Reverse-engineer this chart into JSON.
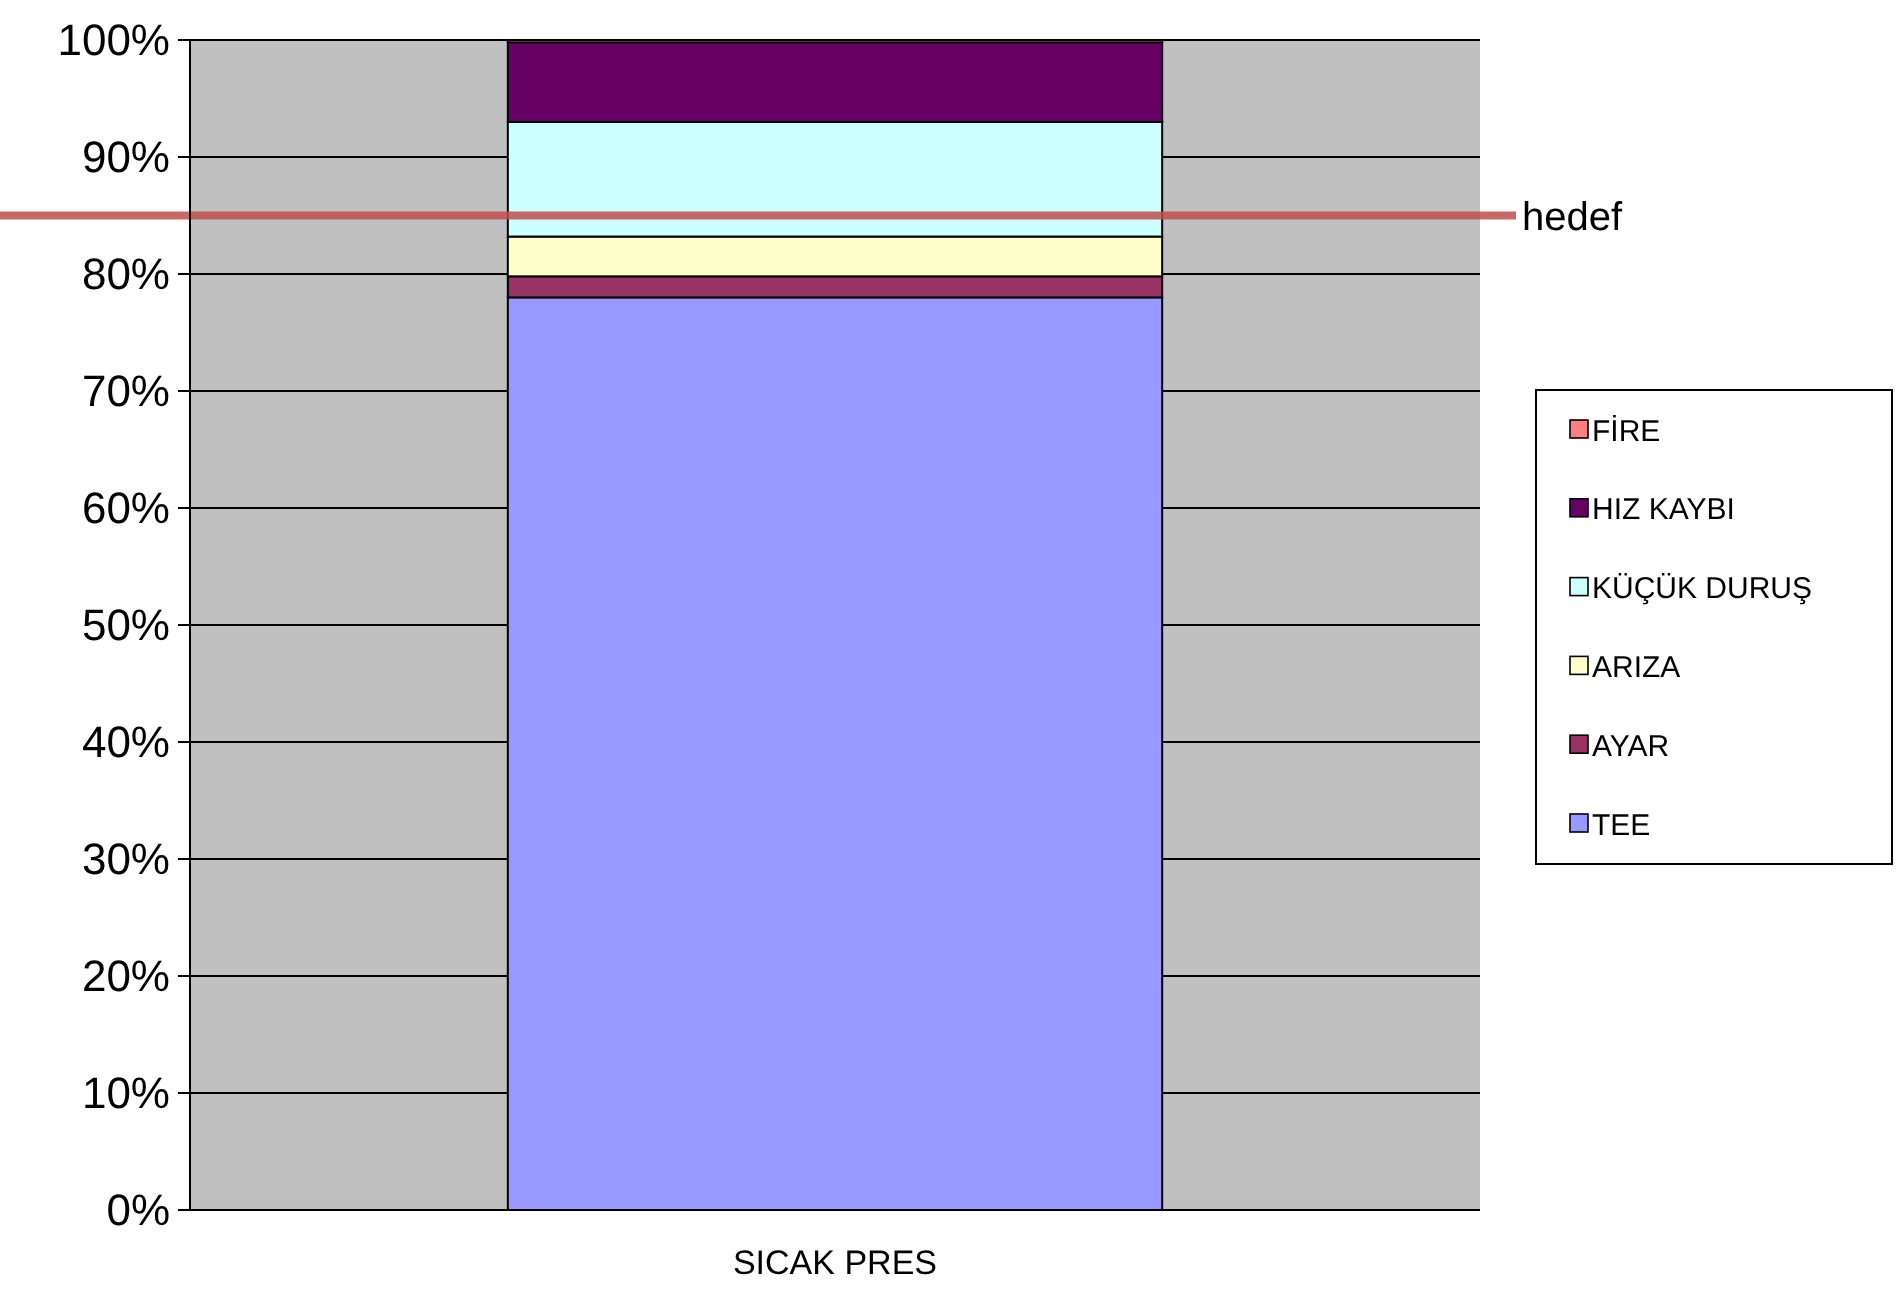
{
  "chart_data": {
    "type": "bar",
    "stacked": true,
    "categories": [
      "SICAK PRES"
    ],
    "series": [
      {
        "name": "TEE",
        "color": "#9999ff",
        "values": [
          78
        ]
      },
      {
        "name": "AYAR",
        "color": "#993366",
        "values": [
          1.8
        ]
      },
      {
        "name": "ARIZA",
        "color": "#ffffcc",
        "values": [
          3.4
        ]
      },
      {
        "name": "KÜÇÜK DURUŞ",
        "color": "#ccffff",
        "values": [
          9.8
        ]
      },
      {
        "name": "HIZ KAYBI",
        "color": "#660066",
        "values": [
          6.8
        ]
      },
      {
        "name": "FİRE",
        "color": "#ff8080",
        "values": [
          0.2
        ]
      }
    ],
    "ylim": [
      0,
      100
    ],
    "yticks": [
      {
        "value": 0,
        "label": "0%"
      },
      {
        "value": 10,
        "label": "10%"
      },
      {
        "value": 20,
        "label": "20%"
      },
      {
        "value": 30,
        "label": "30%"
      },
      {
        "value": 40,
        "label": "40%"
      },
      {
        "value": 50,
        "label": "50%"
      },
      {
        "value": 60,
        "label": "60%"
      },
      {
        "value": 70,
        "label": "70%"
      },
      {
        "value": 80,
        "label": "80%"
      },
      {
        "value": 90,
        "label": "90%"
      },
      {
        "value": 100,
        "label": "100%"
      }
    ],
    "grid": "y",
    "legend": "right",
    "ref_lines": [
      {
        "axis": "y",
        "value": 85,
        "label": "hedef",
        "color": "#c0504d"
      }
    ]
  }
}
